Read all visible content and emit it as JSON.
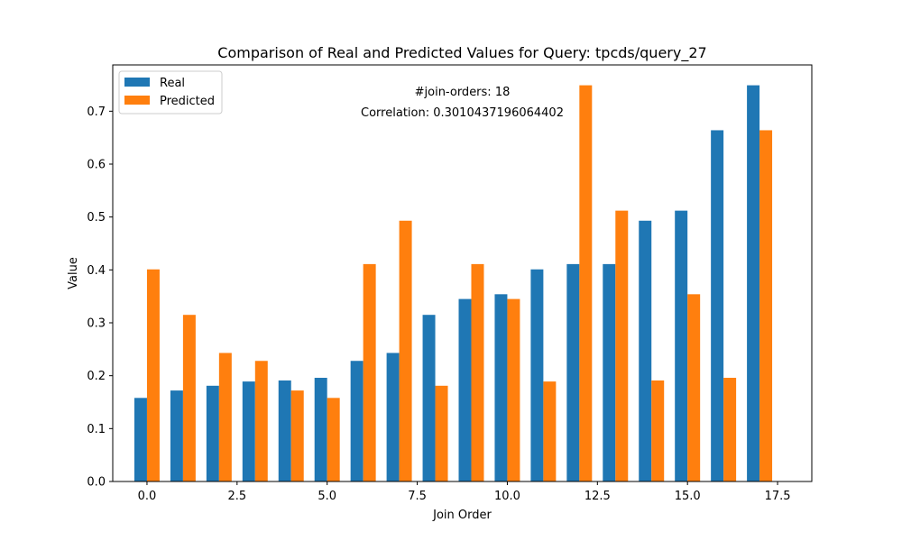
{
  "chart_data": {
    "type": "bar",
    "title": "Comparison of Real and Predicted Values for Query: tpcds/query_27",
    "xlabel": "Join Order",
    "ylabel": "Value",
    "xlim": [
      -0.95,
      18.45
    ],
    "ylim": [
      0,
      0.7875
    ],
    "x": [
      0,
      1,
      2,
      3,
      4,
      5,
      6,
      7,
      8,
      9,
      10,
      11,
      12,
      13,
      14,
      15,
      16,
      17
    ],
    "xticks": [
      0.0,
      2.5,
      5.0,
      7.5,
      10.0,
      12.5,
      15.0,
      17.5
    ],
    "xtick_labels": [
      "0.0",
      "2.5",
      "5.0",
      "7.5",
      "10.0",
      "12.5",
      "15.0",
      "17.5"
    ],
    "yticks": [
      0.0,
      0.1,
      0.2,
      0.3,
      0.4,
      0.5,
      0.6,
      0.7
    ],
    "ytick_labels": [
      "0.0",
      "0.1",
      "0.2",
      "0.3",
      "0.4",
      "0.5",
      "0.6",
      "0.7"
    ],
    "bar_width": 0.35,
    "grid": false,
    "legend_position": "top-left",
    "series": [
      {
        "name": "Real",
        "color": "#1f77b4",
        "values": [
          0.158,
          0.172,
          0.181,
          0.189,
          0.191,
          0.196,
          0.228,
          0.243,
          0.315,
          0.345,
          0.354,
          0.401,
          0.411,
          0.411,
          0.493,
          0.512,
          0.664,
          0.749
        ]
      },
      {
        "name": "Predicted",
        "color": "#ff7f0e",
        "values": [
          0.401,
          0.315,
          0.243,
          0.228,
          0.172,
          0.158,
          0.411,
          0.493,
          0.181,
          0.411,
          0.345,
          0.189,
          0.749,
          0.512,
          0.191,
          0.354,
          0.196,
          0.664
        ]
      }
    ],
    "annotations": [
      "#join-orders: 18",
      "Correlation: 0.3010437196064402"
    ]
  }
}
